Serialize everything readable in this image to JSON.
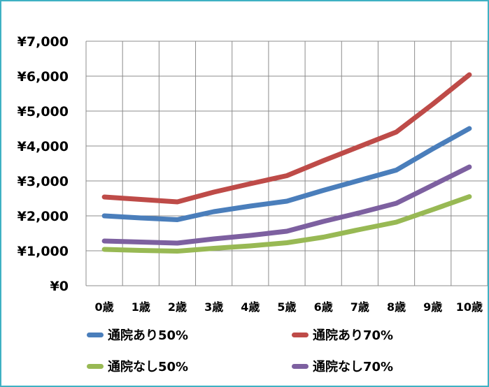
{
  "chart_data": {
    "type": "line",
    "categories": [
      "0歳",
      "1歳",
      "2歳",
      "3歳",
      "4歳",
      "5歳",
      "6歳",
      "7歳",
      "8歳",
      "9歳",
      "10歳"
    ],
    "y_tick_labels": [
      "¥0",
      "¥1,000",
      "¥2,000",
      "¥3,000",
      "¥4,000",
      "¥5,000",
      "¥6,000",
      "¥7,000"
    ],
    "ylim": [
      0,
      7000
    ],
    "y_step": 1000,
    "grid": true,
    "legend_position": "bottom",
    "series": [
      {
        "name": "通院あり50%",
        "color": "#4a7ebb",
        "values": [
          2000,
          1940,
          1890,
          2120,
          2280,
          2420,
          2730,
          3020,
          3310,
          3920,
          4500
        ]
      },
      {
        "name": "通院あり70%",
        "color": "#be4b48",
        "values": [
          2540,
          2470,
          2400,
          2680,
          2920,
          3150,
          3580,
          3990,
          4400,
          5200,
          6040
        ]
      },
      {
        "name": "通院なし50%",
        "color": "#98b954",
        "values": [
          1040,
          1010,
          990,
          1070,
          1140,
          1230,
          1390,
          1610,
          1820,
          2180,
          2550
        ]
      },
      {
        "name": "通院なし70%",
        "color": "#7d60a0",
        "values": [
          1280,
          1250,
          1220,
          1340,
          1440,
          1560,
          1840,
          2090,
          2360,
          2880,
          3400
        ]
      }
    ]
  }
}
